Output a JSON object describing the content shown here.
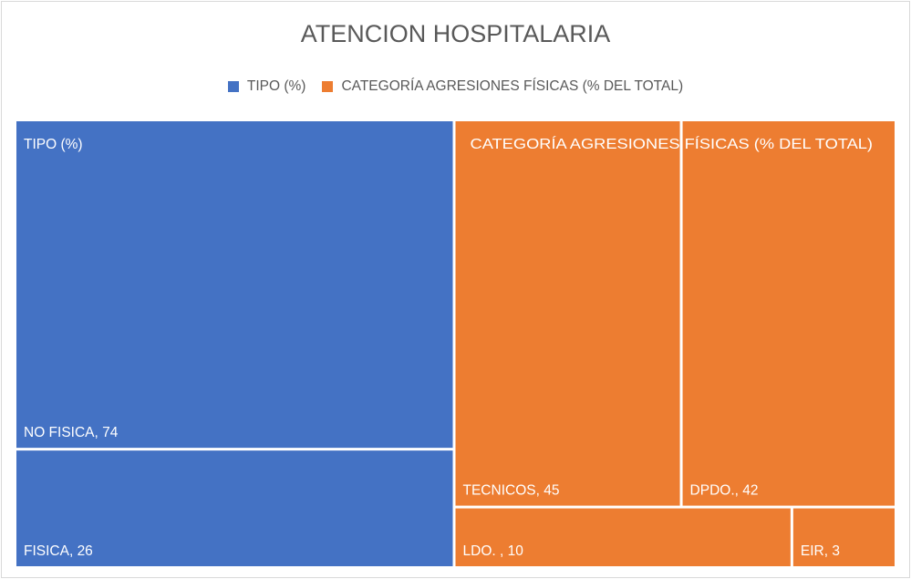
{
  "chart_data": {
    "type": "treemap",
    "title": "ATENCION HOSPITALARIA",
    "colors": {
      "tipo": "#4472c4",
      "categoria": "#ed7d31"
    },
    "legend": [
      {
        "label": "TIPO (%)",
        "color": "#4472c4"
      },
      {
        "label": "CATEGORÍA  AGRESIONES FÍSICAS (% DEL TOTAL)",
        "color": "#ed7d31"
      }
    ],
    "groups": [
      {
        "name": "TIPO (%)",
        "color": "#4472c4",
        "items": [
          {
            "label": "NO FISICA",
            "value": 74,
            "display": "NO FISICA, 74"
          },
          {
            "label": "FISICA",
            "value": 26,
            "display": "FISICA, 26"
          }
        ]
      },
      {
        "name": "CATEGORÍA  AGRESIONES FÍSICAS (% DEL TOTAL)",
        "color": "#ed7d31",
        "items": [
          {
            "label": "TECNICOS",
            "value": 45,
            "display": "TECNICOS, 45"
          },
          {
            "label": "DPDO.",
            "value": 42,
            "display": "DPDO., 42"
          },
          {
            "label": "LDO. ",
            "value": 10,
            "display": "LDO. , 10"
          },
          {
            "label": "EIR",
            "value": 3,
            "display": "EIR, 3"
          }
        ]
      }
    ]
  }
}
